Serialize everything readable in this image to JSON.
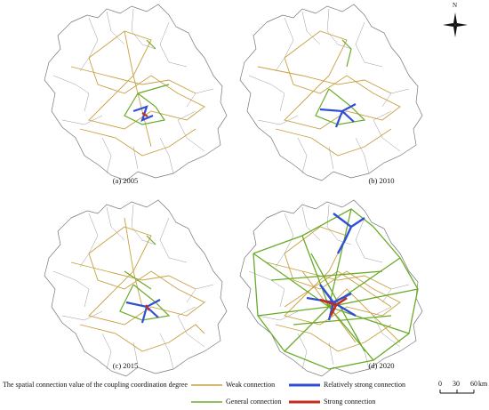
{
  "compass": {
    "label": "N",
    "icon": "north-arrow-icon"
  },
  "panels": [
    {
      "caption": "(a) 2005"
    },
    {
      "caption": "(b) 2010"
    },
    {
      "caption": "(c) 2015"
    },
    {
      "caption": "(d) 2020"
    }
  ],
  "legend": {
    "title": "The spatial connection value of the coupling coordination degree",
    "items": [
      {
        "label": "Weak connection",
        "color": "#c8a040"
      },
      {
        "label": "General connection",
        "color": "#6aab2a"
      },
      {
        "label": "Relatively strong connection",
        "color": "#2f4fd6"
      },
      {
        "label": "Strong connection",
        "color": "#c42a1e"
      }
    ]
  },
  "scale_bar": {
    "ticks": [
      "0",
      "30",
      "60"
    ],
    "unit": "km"
  }
}
